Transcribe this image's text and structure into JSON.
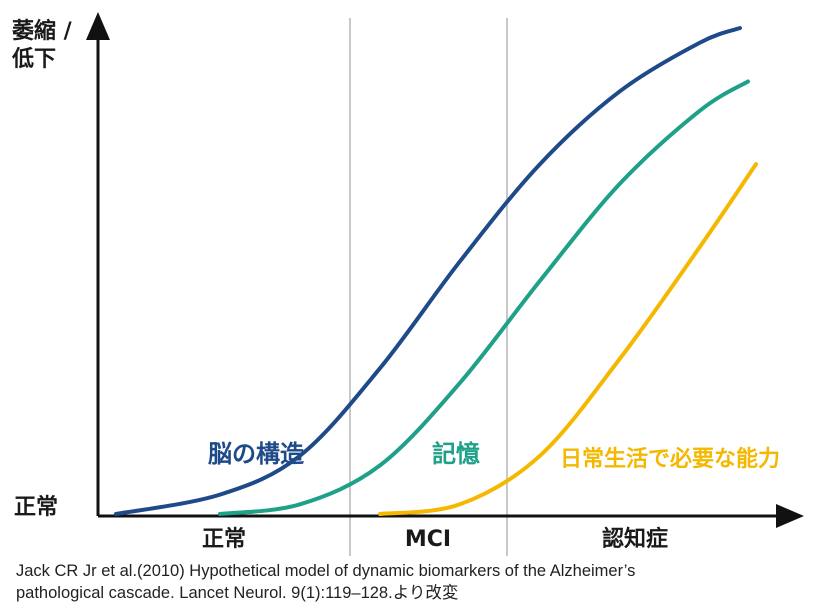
{
  "chart_data": {
    "type": "line",
    "y_axis_label": [
      "萎縮 /",
      "低下"
    ],
    "y_axis_baseline_label": "正常",
    "x_ticks": [],
    "stages": [
      "正常",
      "MCI",
      "認知症"
    ],
    "series": [
      {
        "name": "脳の構造",
        "color": "#1f4a8a",
        "points": [
          [
            0.07,
            0.0
          ],
          [
            0.2,
            0.04
          ],
          [
            0.3,
            0.12
          ],
          [
            0.4,
            0.3
          ],
          [
            0.5,
            0.52
          ],
          [
            0.6,
            0.72
          ],
          [
            0.7,
            0.87
          ],
          [
            0.8,
            0.97
          ],
          [
            0.85,
            1.0
          ]
        ]
      },
      {
        "name": "記憶",
        "color": "#1fa088",
        "points": [
          [
            0.2,
            0.0
          ],
          [
            0.3,
            0.02
          ],
          [
            0.4,
            0.1
          ],
          [
            0.5,
            0.27
          ],
          [
            0.6,
            0.48
          ],
          [
            0.7,
            0.68
          ],
          [
            0.8,
            0.83
          ],
          [
            0.86,
            0.89
          ]
        ]
      },
      {
        "name": "日常生活で必要な能力",
        "color": "#f5b800",
        "points": [
          [
            0.4,
            0.0
          ],
          [
            0.5,
            0.02
          ],
          [
            0.6,
            0.12
          ],
          [
            0.7,
            0.32
          ],
          [
            0.8,
            0.55
          ],
          [
            0.87,
            0.72
          ]
        ]
      }
    ],
    "stage_dividers": [
      "正常 | MCI",
      "MCI | 認知症"
    ],
    "grid": false
  },
  "caption": {
    "line1": "Jack CR Jr et al.(2010) Hypothetical model of dynamic biomarkers of the Alzheimer’s",
    "line2": "pathological cascade. Lancet Neurol. 9(1):119–128.より改変"
  }
}
